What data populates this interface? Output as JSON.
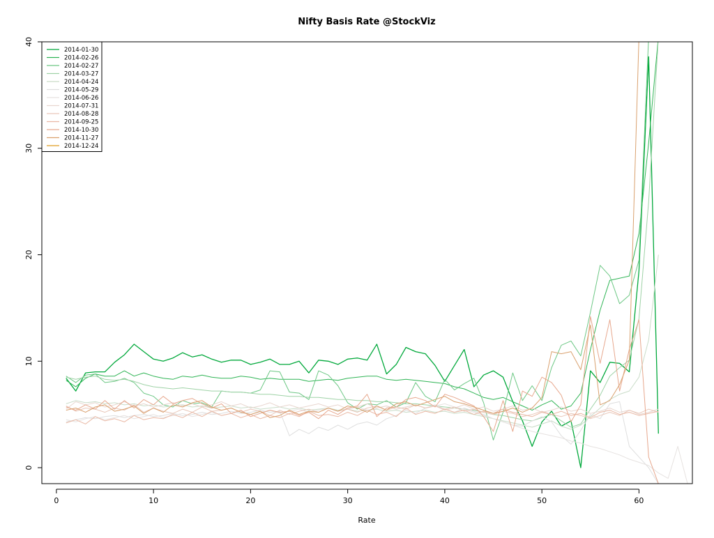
{
  "chart_data": {
    "type": "line",
    "title": "Nifty Basis Rate @StockViz",
    "xlabel": "Rate",
    "ylabel": "",
    "xlim": [
      -1.5,
      65.5
    ],
    "ylim": [
      -1.5,
      40
    ],
    "x_ticks": [
      0,
      10,
      20,
      30,
      40,
      50,
      60
    ],
    "y_ticks": [
      0,
      10,
      20,
      30,
      40
    ],
    "legend_position": "top-left",
    "series": [
      {
        "name": "2014-01-30",
        "color": "#00a83a",
        "width": 1.3,
        "values": [
          8.4,
          7.2,
          8.9,
          9.0,
          9.0,
          9.9,
          10.6,
          11.6,
          10.9,
          10.2,
          10.0,
          10.3,
          10.8,
          10.4,
          10.6,
          10.2,
          9.9,
          10.1,
          10.1,
          9.7,
          9.9,
          10.2,
          9.7,
          9.7,
          10.0,
          8.9,
          10.1,
          10.0,
          9.7,
          10.2,
          10.3,
          10.1,
          11.6,
          8.8,
          9.7,
          11.3,
          10.9,
          10.7,
          9.6,
          8.1,
          9.6,
          11.1,
          7.6,
          8.7,
          9.1,
          8.5,
          6.2,
          4.4,
          2.0,
          4.3,
          5.3,
          3.9,
          4.4,
          0.0,
          9.1,
          8.0,
          9.9,
          9.8,
          9.0,
          18.5,
          38.6,
          3.2
        ]
      },
      {
        "name": "2014-02-26",
        "color": "#2eb454",
        "width": 1.0,
        "values": [
          8.2,
          7.6,
          8.4,
          8.8,
          8.6,
          8.6,
          9.1,
          8.6,
          8.9,
          8.6,
          8.4,
          8.3,
          8.6,
          8.5,
          8.7,
          8.5,
          8.4,
          8.4,
          8.6,
          8.5,
          8.3,
          8.4,
          8.3,
          8.3,
          8.3,
          8.1,
          8.2,
          8.3,
          8.2,
          8.4,
          8.5,
          8.6,
          8.6,
          8.3,
          8.2,
          8.3,
          8.2,
          8.1,
          8.0,
          7.9,
          7.6,
          7.4,
          7.0,
          6.6,
          6.4,
          6.6,
          6.2,
          5.8,
          5.4,
          5.9,
          6.3,
          5.5,
          5.8,
          7.0,
          11.1,
          14.8,
          17.6,
          17.8,
          18.0,
          22.0,
          30.5,
          40.5
        ]
      },
      {
        "name": "2014-02-27",
        "color": "#6cc784",
        "width": 1.0,
        "values": [
          8.6,
          8.0,
          8.7,
          8.8,
          8.0,
          8.1,
          8.4,
          8.0,
          7.0,
          6.7,
          5.9,
          5.7,
          6.3,
          6.0,
          6.1,
          5.7,
          7.2,
          7.1,
          7.1,
          7.0,
          7.3,
          9.1,
          9.0,
          7.1,
          7.0,
          6.4,
          9.1,
          8.7,
          7.7,
          6.1,
          5.5,
          6.0,
          5.9,
          6.3,
          5.7,
          6.1,
          8.0,
          6.7,
          6.2,
          8.3,
          7.3,
          7.9,
          8.4,
          6.1,
          2.6,
          5.2,
          8.9,
          6.3,
          7.7,
          6.3,
          9.4,
          11.5,
          11.9,
          10.5,
          14.6,
          19.0,
          18.0,
          15.4,
          16.2,
          19.5,
          40.5,
          40.5
        ]
      },
      {
        "name": "2014-03-27",
        "color": "#9ed2a6",
        "width": 1.0,
        "values": [
          8.5,
          8.3,
          8.5,
          8.6,
          8.3,
          8.2,
          8.3,
          8.1,
          7.8,
          7.6,
          7.5,
          7.4,
          7.5,
          7.4,
          7.3,
          7.2,
          7.2,
          7.1,
          7.1,
          7.0,
          6.9,
          6.9,
          6.8,
          6.7,
          6.7,
          6.6,
          6.6,
          6.5,
          6.4,
          6.4,
          6.3,
          6.3,
          6.2,
          6.2,
          6.1,
          6.0,
          6.0,
          5.9,
          5.8,
          5.7,
          5.6,
          5.5,
          5.4,
          5.2,
          5.0,
          4.9,
          4.7,
          4.5,
          4.4,
          4.7,
          5.0,
          4.4,
          3.8,
          4.1,
          5.5,
          6.8,
          8.6,
          9.4,
          10.1,
          14.0,
          25.0,
          40.5
        ]
      },
      {
        "name": "2014-04-24",
        "color": "#c9dcc8",
        "width": 1.0,
        "values": [
          6.0,
          6.3,
          6.1,
          6.2,
          6.0,
          6.1,
          5.9,
          6.0,
          5.8,
          5.9,
          5.7,
          5.8,
          5.9,
          5.7,
          5.8,
          5.6,
          5.7,
          5.8,
          5.6,
          5.7,
          5.5,
          5.6,
          5.7,
          5.5,
          5.6,
          5.4,
          5.5,
          5.6,
          5.4,
          5.5,
          5.3,
          5.4,
          5.5,
          5.3,
          5.4,
          5.2,
          5.3,
          5.4,
          5.2,
          5.3,
          5.1,
          5.2,
          5.0,
          4.8,
          4.6,
          4.4,
          4.2,
          4.0,
          3.8,
          4.1,
          4.4,
          3.9,
          3.6,
          4.0,
          4.8,
          5.6,
          6.4,
          6.9,
          7.2,
          8.5,
          12.0,
          20.0
        ]
      },
      {
        "name": "2014-05-29",
        "color": "#dedede",
        "width": 1.0,
        "values": [
          4.3,
          4.5,
          4.7,
          4.6,
          4.8,
          4.9,
          4.7,
          4.9,
          5.0,
          4.8,
          4.9,
          5.1,
          4.9,
          5.0,
          5.2,
          5.0,
          5.1,
          5.3,
          5.1,
          5.2,
          5.4,
          5.2,
          5.3,
          3.0,
          3.6,
          3.2,
          3.8,
          3.5,
          4.0,
          3.6,
          4.1,
          4.3,
          4.0,
          4.6,
          4.9,
          5.4,
          5.1,
          5.6,
          5.9,
          5.5,
          5.2,
          5.6,
          5.3,
          5.0,
          4.6,
          4.3,
          4.0,
          3.9,
          4.4,
          4.8,
          4.3,
          3.0,
          2.2,
          3.5,
          5.0,
          4.6,
          6.0,
          6.2,
          2.0,
          1.0,
          0.0,
          -1.5
        ]
      },
      {
        "name": "2014-06-26",
        "color": "#e6e2e0",
        "width": 1.0,
        "values": [
          4.5,
          4.3,
          4.6,
          4.8,
          4.5,
          4.7,
          4.9,
          4.6,
          4.8,
          5.0,
          4.7,
          4.9,
          5.1,
          4.8,
          5.0,
          5.2,
          4.9,
          5.1,
          5.3,
          5.0,
          5.2,
          5.4,
          5.1,
          5.3,
          5.5,
          5.2,
          5.4,
          5.6,
          5.3,
          5.5,
          5.7,
          5.4,
          5.6,
          5.8,
          5.5,
          5.7,
          5.9,
          5.6,
          5.8,
          6.0,
          5.7,
          5.5,
          5.2,
          4.9,
          4.6,
          4.3,
          4.0,
          3.7,
          3.4,
          3.2,
          3.0,
          2.8,
          2.5,
          2.3,
          2.0,
          1.8,
          1.5,
          1.2,
          0.8,
          0.5,
          0.2,
          -0.5,
          -1.0,
          2.0,
          -1.5
        ]
      },
      {
        "name": "2014-07-31",
        "color": "#e8d6cf",
        "width": 1.0,
        "values": [
          5.5,
          6.2,
          5.9,
          6.1,
          5.7,
          5.9,
          6.2,
          5.8,
          6.0,
          5.7,
          5.9,
          6.1,
          5.8,
          6.0,
          5.7,
          5.9,
          6.2,
          5.8,
          6.0,
          5.6,
          5.8,
          6.1,
          5.7,
          5.9,
          5.6,
          5.8,
          6.0,
          5.7,
          5.9,
          5.5,
          5.7,
          6.0,
          5.6,
          5.8,
          5.5,
          5.7,
          5.9,
          5.6,
          5.8,
          5.4,
          5.6,
          5.9,
          5.5,
          5.7,
          5.3,
          5.5,
          5.8,
          5.4,
          5.6,
          5.2,
          5.4,
          5.7,
          5.3,
          5.5,
          5.1,
          5.3,
          5.6,
          5.2,
          5.4,
          5.0,
          5.2,
          5.5
        ]
      },
      {
        "name": "2014-08-28",
        "color": "#e9c7b9",
        "width": 1.0,
        "values": [
          5.8,
          5.3,
          5.6,
          5.5,
          5.2,
          5.6,
          5.4,
          5.9,
          5.2,
          5.6,
          5.3,
          5.1,
          5.5,
          5.2,
          5.7,
          5.3,
          5.4,
          5.6,
          5.2,
          5.5,
          5.3,
          4.9,
          5.4,
          5.0,
          5.3,
          5.5,
          5.2,
          5.6,
          5.3,
          5.5,
          5.2,
          5.6,
          5.8,
          5.4,
          5.7,
          5.5,
          5.9,
          5.6,
          5.8,
          5.5,
          5.7,
          5.3,
          5.5,
          5.2,
          5.0,
          5.3,
          5.1,
          4.8,
          5.0,
          5.3,
          5.0,
          4.8,
          5.1,
          4.9,
          4.6,
          4.9,
          5.2,
          4.9,
          5.4,
          5.1,
          5.5,
          5.2
        ]
      },
      {
        "name": "2014-09-25",
        "color": "#e9b7a3",
        "width": 1.0,
        "values": [
          4.2,
          4.5,
          4.1,
          4.8,
          4.4,
          4.6,
          4.3,
          4.9,
          4.5,
          4.7,
          4.6,
          5.0,
          4.7,
          5.2,
          4.8,
          5.3,
          4.9,
          5.1,
          4.7,
          5.0,
          4.6,
          4.9,
          4.7,
          5.1,
          4.8,
          5.3,
          4.9,
          5.0,
          4.8,
          5.2,
          4.9,
          5.4,
          5.0,
          5.2,
          4.8,
          5.6,
          5.0,
          5.3,
          5.1,
          5.5,
          5.2,
          5.4,
          5.0,
          5.3,
          5.1,
          5.5,
          5.2,
          5.0,
          4.8,
          5.2,
          5.0,
          5.3,
          4.9,
          5.1,
          4.7,
          5.2,
          5.4,
          5.0,
          5.2,
          4.9,
          5.1,
          5.3
        ]
      },
      {
        "name": "2014-10-30",
        "color": "#e7a78d",
        "width": 1.0,
        "values": [
          5.7,
          5.4,
          5.9,
          5.5,
          6.3,
          5.5,
          6.3,
          5.6,
          6.4,
          5.9,
          6.7,
          6.0,
          6.3,
          6.5,
          6.0,
          5.6,
          6.0,
          5.1,
          5.4,
          4.8,
          5.1,
          5.4,
          5.2,
          5.3,
          4.9,
          5.2,
          4.6,
          5.4,
          5.0,
          5.6,
          5.8,
          6.9,
          4.8,
          5.6,
          5.7,
          6.4,
          6.6,
          6.3,
          5.7,
          6.9,
          6.6,
          6.2,
          5.8,
          4.8,
          3.4,
          6.3,
          3.4,
          7.2,
          6.7,
          8.5,
          8.0,
          6.8,
          4.3,
          5.9,
          14.2,
          9.8,
          13.9,
          7.2,
          11.1,
          13.9,
          1.0,
          -1.5
        ]
      },
      {
        "name": "2014-11-27",
        "color": "#d9a06d",
        "width": 1.0,
        "values": [
          5.4,
          5.6,
          5.2,
          5.7,
          5.9,
          5.3,
          5.5,
          5.8,
          5.1,
          5.6,
          5.2,
          5.9,
          5.7,
          6.1,
          6.3,
          5.7,
          5.4,
          5.6,
          5.2,
          5.0,
          5.3,
          4.7,
          4.9,
          5.4,
          5.0,
          5.3,
          5.2,
          5.6,
          5.3,
          5.8,
          5.6,
          5.2,
          5.8,
          5.4,
          6.0,
          6.2,
          5.8,
          6.1,
          6.4,
          6.7,
          6.2,
          6.0,
          5.7,
          5.4,
          5.1,
          5.3,
          5.6,
          5.2,
          5.6,
          6.6,
          10.9,
          10.7,
          10.9,
          9.2,
          13.4,
          5.9,
          6.3,
          7.8,
          10.1,
          40.5,
          40.5,
          40.5
        ]
      },
      {
        "name": "2014-12-24",
        "color": "#e09a1c",
        "width": 1.0,
        "values": []
      }
    ]
  }
}
